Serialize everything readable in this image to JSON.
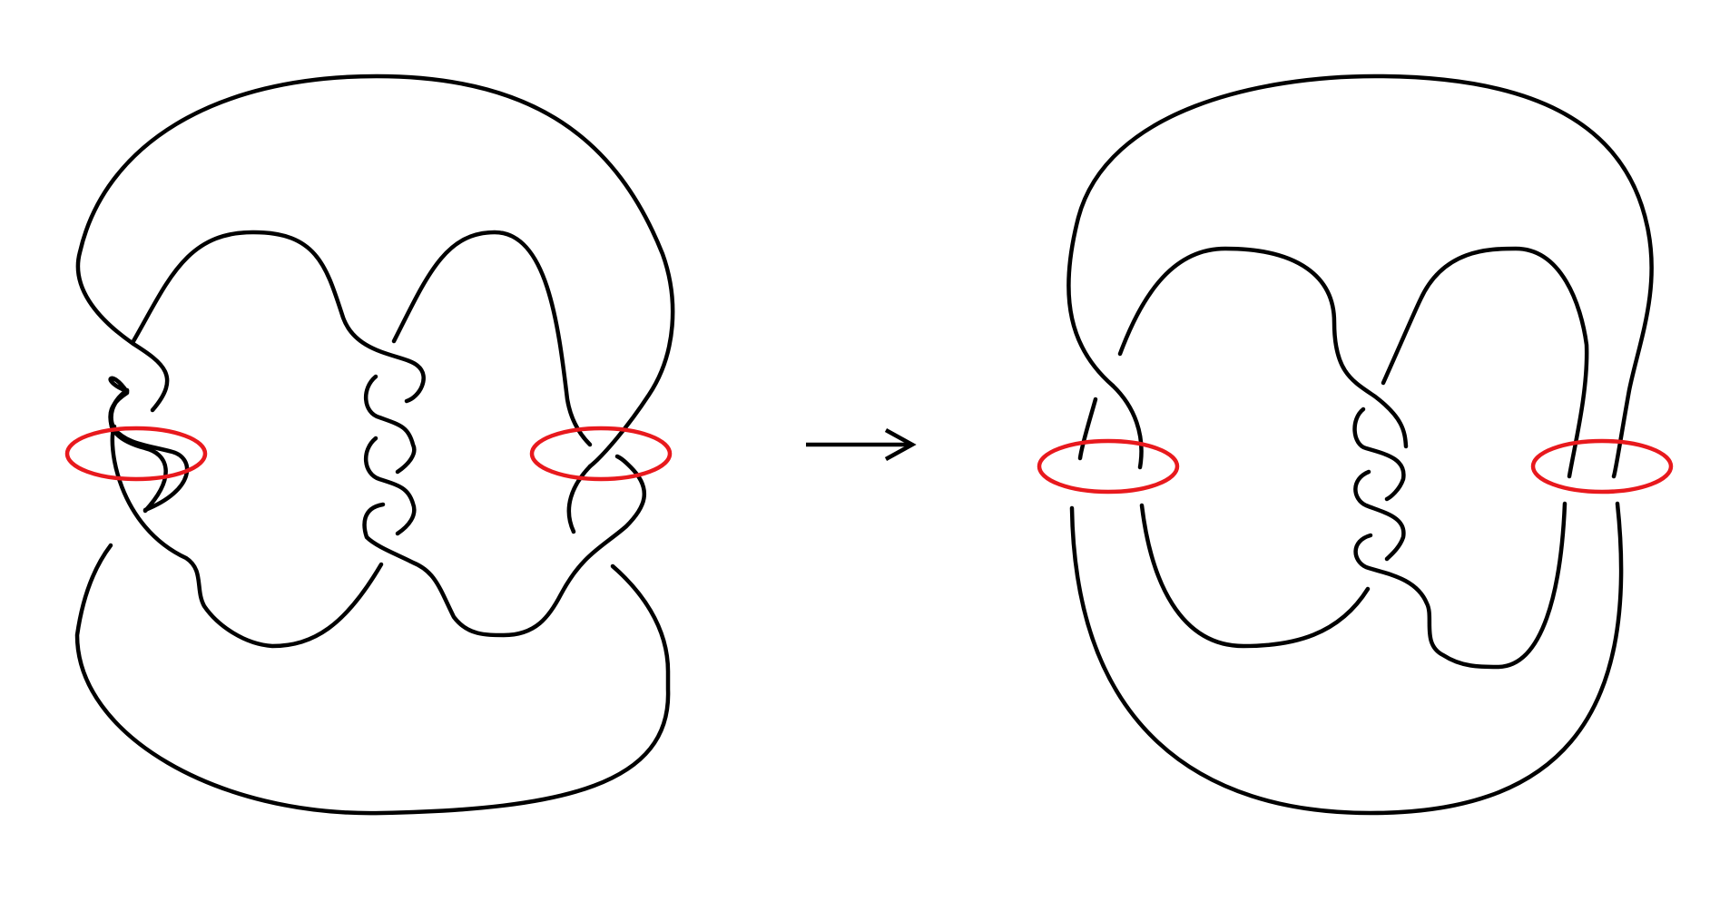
{
  "diagram": {
    "strand_color": "#000000",
    "unknot_color": "#e8191d",
    "arrow_color": "#000000",
    "background": "#ffffff",
    "panels": [
      {
        "id": "before",
        "unknots": 2,
        "middle_twist_crossings": 3
      },
      {
        "id": "after",
        "unknots": 2,
        "middle_twist_crossings": 3
      }
    ],
    "arrow": {
      "direction": "right"
    }
  }
}
